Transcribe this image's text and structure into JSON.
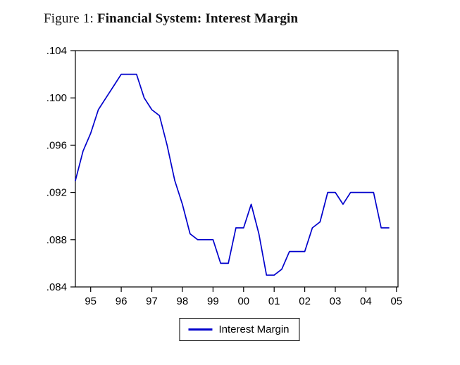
{
  "figure": {
    "title_prefix": "Figure 1:",
    "title_main": "Financial System: Interest Margin"
  },
  "legend": {
    "label": "Interest Margin"
  },
  "chart_data": {
    "type": "line",
    "title": "Figure 1: Financial System: Interest Margin",
    "xlabel": "",
    "ylabel": "",
    "grid": false,
    "legend_position": "bottom",
    "xlim": [
      1994.5,
      2005.05
    ],
    "ylim": [
      0.084,
      0.104
    ],
    "x_ticks": [
      1995,
      1996,
      1997,
      1998,
      1999,
      2000,
      2001,
      2002,
      2003,
      2004,
      2005
    ],
    "x_tick_labels": [
      "95",
      "96",
      "97",
      "98",
      "99",
      "00",
      "01",
      "02",
      "03",
      "04",
      "05"
    ],
    "y_ticks": [
      0.104,
      0.1,
      0.096,
      0.092,
      0.088,
      0.084
    ],
    "y_tick_labels": [
      ".104",
      ".100",
      ".096",
      ".092",
      ".088",
      ".084"
    ],
    "series": [
      {
        "name": "Interest Margin",
        "color": "#0000CC",
        "x": [
          1994.5,
          1994.75,
          1995.0,
          1995.25,
          1995.5,
          1995.75,
          1996.0,
          1996.25,
          1996.5,
          1996.75,
          1997.0,
          1997.25,
          1997.5,
          1997.75,
          1998.0,
          1998.25,
          1998.5,
          1998.75,
          1999.0,
          1999.25,
          1999.5,
          1999.75,
          2000.0,
          2000.25,
          2000.5,
          2000.75,
          2001.0,
          2001.25,
          2001.5,
          2001.75,
          2002.0,
          2002.25,
          2002.5,
          2002.75,
          2003.0,
          2003.25,
          2003.5,
          2003.75,
          2004.0,
          2004.25,
          2004.5,
          2004.75
        ],
        "y": [
          0.093,
          0.0955,
          0.097,
          0.099,
          0.1,
          0.101,
          0.102,
          0.102,
          0.102,
          0.1,
          0.099,
          0.0985,
          0.096,
          0.093,
          0.091,
          0.0885,
          0.088,
          0.088,
          0.088,
          0.086,
          0.086,
          0.089,
          0.089,
          0.091,
          0.0885,
          0.085,
          0.085,
          0.0855,
          0.087,
          0.087,
          0.087,
          0.089,
          0.0895,
          0.092,
          0.092,
          0.091,
          0.092,
          0.092,
          0.092,
          0.092,
          0.089,
          0.089
        ]
      }
    ]
  }
}
